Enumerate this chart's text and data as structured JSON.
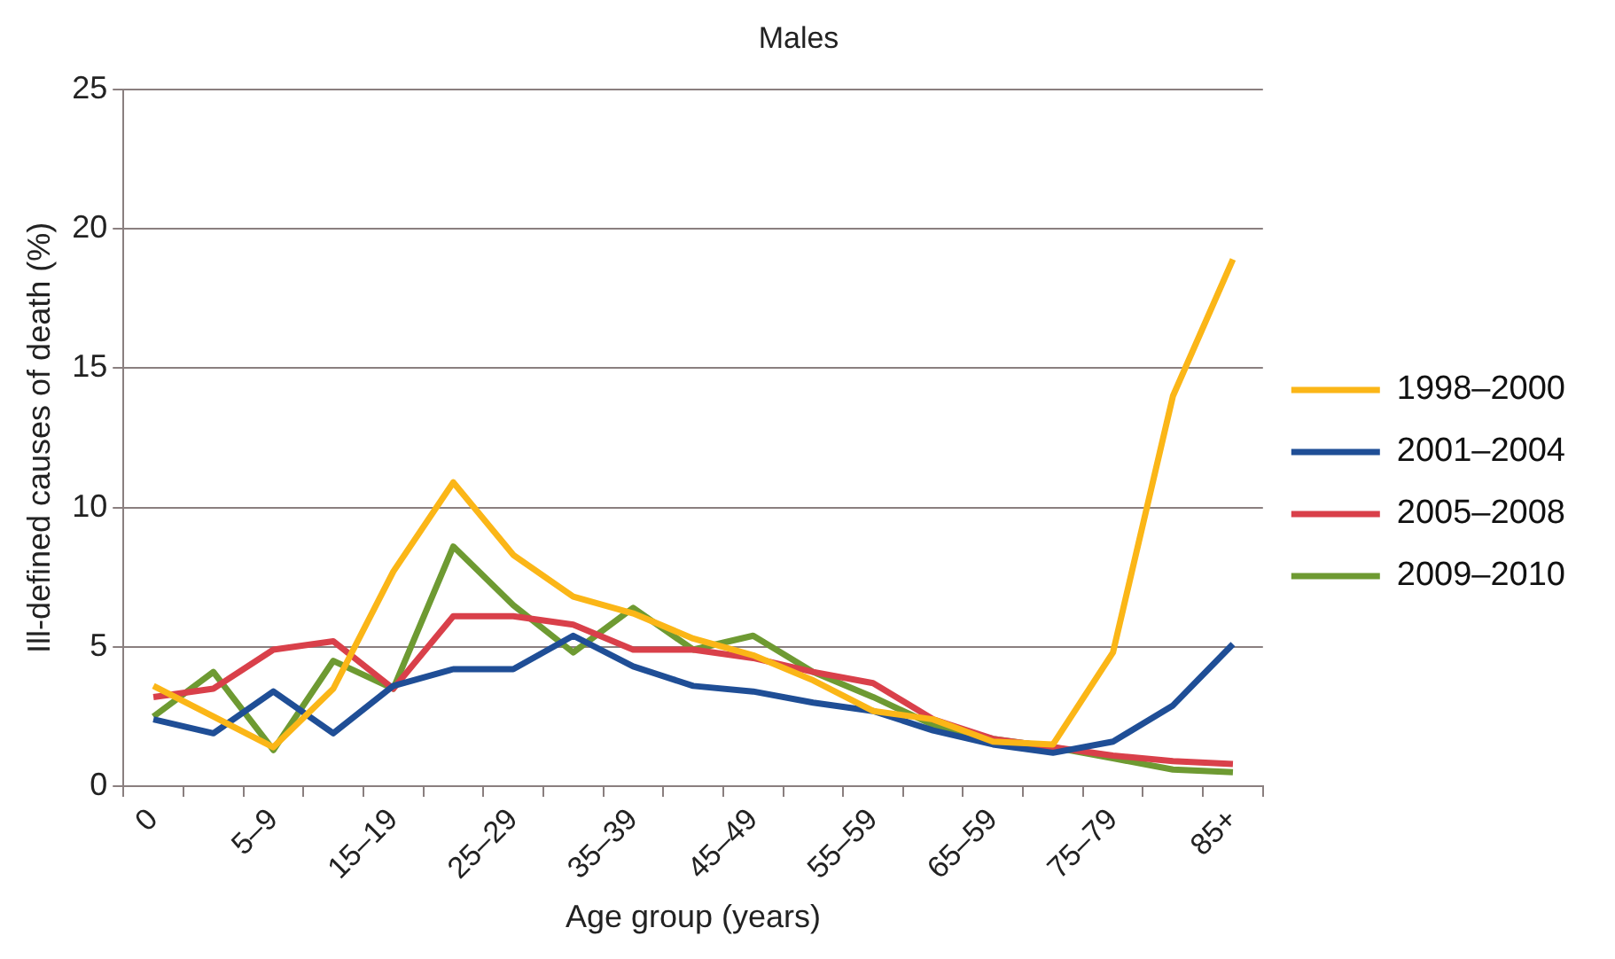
{
  "chart_data": {
    "type": "line",
    "title": "Males",
    "xlabel": "Age group (years)",
    "ylabel": "Ill-defined causes of death (%)",
    "categories": [
      "0",
      null,
      "5–9",
      null,
      "15–19",
      null,
      "25–29",
      null,
      "35–39",
      null,
      "45–49",
      null,
      "55–59",
      null,
      "65–59",
      null,
      "75–79",
      null,
      "85+"
    ],
    "series": [
      {
        "name": "1998–2000",
        "color": "#fbb617",
        "values": [
          3.6,
          2.5,
          1.4,
          3.5,
          7.7,
          10.9,
          8.3,
          6.8,
          6.2,
          5.3,
          4.7,
          3.8,
          2.7,
          2.4,
          1.6,
          1.5,
          4.8,
          14.0,
          18.9
        ]
      },
      {
        "name": "2001–2004",
        "color": "#1f4e96",
        "values": [
          2.4,
          1.9,
          3.4,
          1.9,
          3.6,
          4.2,
          4.2,
          5.4,
          4.3,
          3.6,
          3.4,
          3.0,
          2.7,
          2.0,
          1.5,
          1.2,
          1.6,
          2.9,
          5.1
        ]
      },
      {
        "name": "2005–2008",
        "color": "#d9404a",
        "values": [
          3.2,
          3.5,
          4.9,
          5.2,
          3.5,
          6.1,
          6.1,
          5.8,
          4.9,
          4.9,
          4.6,
          4.1,
          3.7,
          2.4,
          1.7,
          1.4,
          1.1,
          0.9,
          0.8
        ]
      },
      {
        "name": "2009–2010",
        "color": "#6e9a32",
        "values": [
          2.5,
          4.1,
          1.3,
          4.5,
          3.5,
          8.6,
          6.5,
          4.8,
          6.4,
          4.9,
          5.4,
          4.1,
          3.2,
          2.2,
          1.7,
          1.4,
          1.0,
          0.6,
          0.5
        ]
      }
    ],
    "ylim": [
      0,
      25
    ],
    "yticks": [
      0,
      5,
      10,
      15,
      20,
      25
    ],
    "grid": "y",
    "legend": "right",
    "marker": "none",
    "line_style": "solid"
  }
}
